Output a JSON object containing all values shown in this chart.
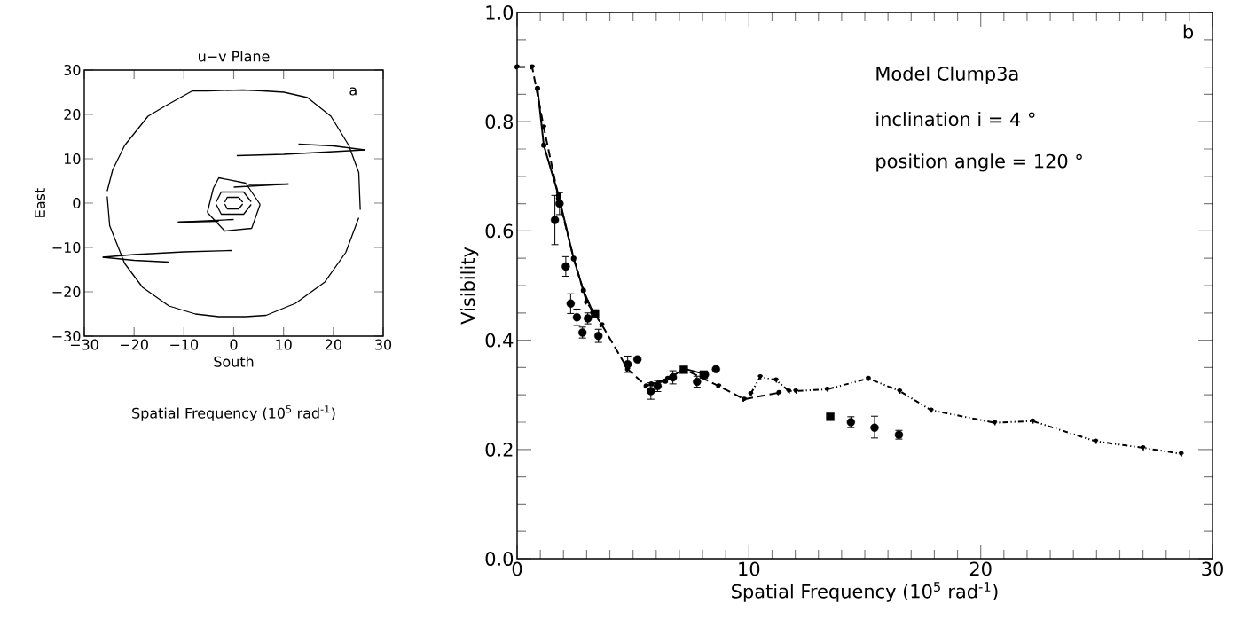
{
  "chart_data": [
    {
      "type": "line",
      "title": "u−v Plane",
      "xlabel": "South",
      "ylabel": "East",
      "annotations": [
        "a",
        "Spatial Frequency (10$^{5}$ rad$^{-1}$)"
      ],
      "xlim": [
        -30,
        30
      ],
      "ylim": [
        -30,
        30
      ],
      "xticks": [
        {
          "value": -30,
          "label": "−30"
        },
        {
          "value": -20,
          "label": "−20"
        },
        {
          "value": -10,
          "label": "−10"
        },
        0,
        10,
        20,
        30
      ],
      "yticks": [
        {
          "value": -30,
          "label": "−30"
        },
        {
          "value": -20,
          "label": "−20"
        },
        {
          "value": -10,
          "label": "−10"
        },
        0,
        10,
        20,
        30
      ],
      "grid": false,
      "line_style": "solid",
      "marker": "none",
      "series": [
        {
          "color": "#000000",
          "x": [
            -25.4,
            -24.3,
            -21.9,
            -17.2,
            -13.6,
            -8.3,
            -5.3,
            1.8,
            5.9,
            10.1,
            14.8,
            19.5,
            23.1,
            25.1,
            25.4
          ],
          "values": [
            2.7,
            7.5,
            13,
            19.6,
            22,
            25.3,
            25.3,
            25.5,
            25.3,
            25,
            23.8,
            19.6,
            13,
            6.9,
            -1.5
          ]
        },
        {
          "color": "#000000",
          "x": [
            -25.4,
            -24.9,
            -21.9,
            -18.3,
            -13,
            -7.7,
            -3,
            2.4,
            6.5,
            12.4,
            18.3,
            22.5,
            25.1
          ],
          "values": [
            1.5,
            -5.1,
            -13.6,
            -19,
            -23.2,
            -25,
            -25.6,
            -25.6,
            -25.3,
            -22.6,
            -17.8,
            -11.1,
            -3.3
          ]
        },
        {
          "color": "#000000",
          "x": [
            0.6,
            10,
            20,
            26.3
          ],
          "values": [
            10.7,
            11,
            11.6,
            12
          ]
        },
        {
          "color": "#000000",
          "x": [
            13,
            20,
            26.3
          ],
          "values": [
            13.3,
            12.9,
            12
          ]
        },
        {
          "color": "#000000",
          "x": [
            -26.3,
            -20,
            -10,
            -0.3
          ],
          "values": [
            -12.2,
            -11.6,
            -11,
            -10.7
          ]
        },
        {
          "color": "#000000",
          "x": [
            -26.3,
            -20,
            -13
          ],
          "values": [
            -12.2,
            -12.9,
            -13.3
          ]
        },
        {
          "color": "#000000",
          "x": [
            0,
            11
          ],
          "values": [
            3.6,
            4.3
          ]
        },
        {
          "color": "#000000",
          "x": [
            3,
            11
          ],
          "values": [
            4.2,
            4.3
          ]
        },
        {
          "color": "#000000",
          "x": [
            -11.2,
            0
          ],
          "values": [
            -4.3,
            -3.7
          ]
        },
        {
          "color": "#000000",
          "x": [
            -11.2,
            -3
          ],
          "values": [
            -4.3,
            -4.1
          ]
        },
        {
          "color": "#000000",
          "x": [
            -5.3,
            -4.1,
            -3,
            2.4,
            5.3
          ],
          "values": [
            -2.1,
            3.3,
            5.7,
            4.5,
            -0.3
          ]
        },
        {
          "color": "#000000",
          "x": [
            -5.3,
            -1.8,
            3.6,
            5.3
          ],
          "values": [
            -2.1,
            -6.3,
            -5.7,
            -0.3
          ]
        },
        {
          "color": "#000000",
          "x": [
            -3.5,
            -2.5,
            2,
            3.5
          ],
          "values": [
            0.3,
            2.5,
            2.5,
            0.3
          ]
        },
        {
          "color": "#000000",
          "x": [
            -3.5,
            -2.5,
            2,
            3.5
          ],
          "values": [
            -0.3,
            -2.5,
            -2.5,
            -0.3
          ]
        },
        {
          "color": "#000000",
          "x": [
            -1.8,
            -1.3,
            1,
            1.8
          ],
          "values": [
            0.2,
            1.3,
            1.3,
            0.2
          ]
        },
        {
          "color": "#000000",
          "x": [
            -1.8,
            -1.3,
            1,
            1.8
          ],
          "values": [
            -0.2,
            -1.3,
            -1.3,
            -0.2
          ]
        }
      ]
    },
    {
      "type": "scatter",
      "xlabel": "Spatial Frequency (10$^{5}$ rad$^{-1}$)",
      "ylabel": "Visibility",
      "annotations": [
        "b",
        "Model Clump3a",
        "inclination i =  4 °",
        "position angle = 120 °"
      ],
      "xlim": [
        0,
        30
      ],
      "ylim": [
        0,
        1
      ],
      "xticks": [
        0,
        10,
        20,
        30
      ],
      "yticks": [
        {
          "value": 0,
          "label": "0.0"
        },
        0.2,
        0.4,
        0.6,
        0.8,
        {
          "value": 1,
          "label": "1.0"
        }
      ],
      "grid": false,
      "marker": "circle",
      "series": [
        {
          "type": "scatter",
          "marker": "circle",
          "color": "#000000",
          "x": [
            1.63,
            1.83,
            2.1,
            2.31,
            2.58,
            2.82,
            3.05,
            3.51,
            4.77,
            5.19,
            5.77,
            6.06,
            6.72,
            7.76,
            8.58,
            14.4,
            15.42,
            16.47
          ],
          "values": [
            0.62,
            0.65,
            0.535,
            0.467,
            0.442,
            0.414,
            0.44,
            0.408,
            0.356,
            0.365,
            0.307,
            0.316,
            0.332,
            0.324,
            0.347,
            0.25,
            0.24,
            0.227
          ],
          "errors": [
            [
              0.575,
              0.665
            ],
            0.02,
            0.018,
            0.018,
            0.015,
            0.01,
            0.01,
            0.012,
            0.015,
            null,
            0.015,
            0.01,
            0.012,
            0.01,
            null,
            0.01,
            [
              0.221,
              0.261
            ],
            0.008
          ]
        },
        {
          "type": "scatter",
          "marker": "square",
          "color": "#000000",
          "x": [
            3.36,
            7.19,
            8.05,
            13.51
          ],
          "values": [
            0.449,
            0.346,
            0.337,
            0.26
          ]
        },
        {
          "type": "line",
          "line_style": "solid",
          "color": "#000000",
          "x": [
            0.88,
            1.15,
            1.79,
            2.44,
            2.86,
            3.27
          ],
          "values": [
            0.861,
            0.757,
            0.665,
            0.549,
            0.491,
            0.451
          ]
        },
        {
          "type": "line",
          "line_style": "solid",
          "color": "#000000",
          "x": [
            5.79,
            6.4,
            7.2,
            8.17
          ],
          "values": [
            0.32,
            0.325,
            0.348,
            0.337
          ]
        },
        {
          "type": "line",
          "line_style": "dashed",
          "color": "#000000",
          "x": [
            0,
            0.65,
            1.15,
            1.79,
            2.44,
            3.0,
            3.66,
            4.77,
            5.57,
            6.5,
            7.2,
            8.7,
            9.8,
            11.3
          ],
          "values": [
            0.9,
            0.9,
            0.79,
            0.66,
            0.55,
            0.47,
            0.428,
            0.347,
            0.316,
            0.33,
            0.347,
            0.316,
            0.292,
            0.304
          ]
        },
        {
          "type": "line",
          "line_style": "dotted",
          "color": "#000000",
          "x": [
            10.08,
            10.49,
            11.17,
            11.72,
            12.02,
            13.38,
            15.15,
            16.5,
            17.86,
            20.6,
            22.24,
            24.96,
            27.0,
            28.65
          ],
          "values": [
            0.302,
            0.333,
            0.327,
            0.307,
            0.307,
            0.31,
            0.33,
            0.307,
            0.272,
            0.249,
            0.252,
            0.215,
            0.203,
            0.192
          ]
        }
      ]
    }
  ]
}
